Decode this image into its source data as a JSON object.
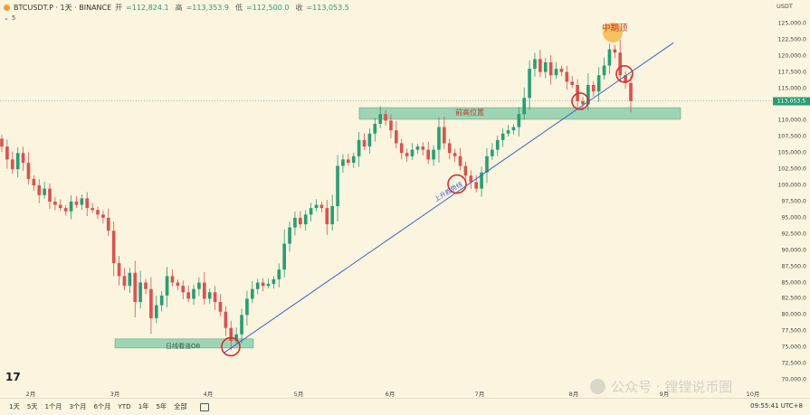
{
  "header": {
    "symbol": "BTCUSDT.P · 1天 · BINANCE",
    "ohlc": [
      {
        "label": "开",
        "value": "=112,824.1"
      },
      {
        "label": "高",
        "value": "=113,353.9"
      },
      {
        "label": "低",
        "value": "=112,500.0"
      },
      {
        "label": "收",
        "value": "=113,053.5"
      }
    ],
    "indicator_count": "5"
  },
  "price_axis": {
    "currency": "USDT",
    "current_price": "113,053.5",
    "ticks": [
      "125,000.0",
      "122,500.0",
      "120,000.0",
      "117,500.0",
      "115,000.0",
      "110,000.0",
      "107,500.0",
      "105,000.0",
      "102,500.0",
      "100,000.0",
      "97,500.0",
      "95,000.0",
      "92,500.0",
      "90,000.0",
      "87,500.0",
      "85,000.0",
      "82,500.0",
      "80,000.0",
      "77,500.0",
      "75,000.0",
      "72,500.0",
      "70,000.0"
    ]
  },
  "time_axis": {
    "ticks": [
      "2月",
      "3月",
      "4月",
      "5月",
      "6月",
      "7月",
      "8月",
      "9月",
      "10月"
    ]
  },
  "annotations": {
    "mid_top": "中期顶",
    "prev_high": "前高位置",
    "trendline": "上升趋势线",
    "daily_ob": "日线看涨OB"
  },
  "footer": {
    "ranges": [
      "1天",
      "5天",
      "1个月",
      "3个月",
      "6个月",
      "YTD",
      "1年",
      "5年",
      "全部"
    ],
    "clock": "09:55:41 UTC+8"
  },
  "watermark": "公众号 · 镗镗说币圈",
  "colors": {
    "up": "#2a9d75",
    "down": "#d9534f",
    "trend": "#3a63c9",
    "zone": "#7fc9a6",
    "circle": "#d03030"
  },
  "chart_data": {
    "type": "candlestick",
    "symbol": "BTCUSDT.P",
    "interval": "1D",
    "y_range": [
      70000,
      127500
    ],
    "x_categories": [
      "2月",
      "3月",
      "4月",
      "5月",
      "6月",
      "7月",
      "8月",
      "9月",
      "10月"
    ],
    "candles_close": [
      106000,
      104000,
      102500,
      105000,
      103500,
      101000,
      100000,
      98500,
      99500,
      97500,
      97000,
      96500,
      96000,
      97500,
      97000,
      98000,
      96500,
      96200,
      95500,
      95000,
      93000,
      88000,
      86000,
      84500,
      86500,
      82000,
      85000,
      84000,
      79500,
      81500,
      83000,
      86000,
      85000,
      84500,
      83500,
      82500,
      84000,
      85000,
      82500,
      83500,
      82000,
      80500,
      78000,
      76000,
      77000,
      80000,
      82500,
      84000,
      85000,
      84500,
      84800,
      85500,
      87000,
      91000,
      93500,
      95000,
      94000,
      95500,
      96500,
      97000,
      96500,
      94000,
      96800,
      103000,
      104000,
      103500,
      104500,
      107000,
      106000,
      108000,
      109500,
      111000,
      110000,
      108500,
      106500,
      105000,
      104500,
      105500,
      106000,
      105500,
      104000,
      105500,
      109000,
      106500,
      105000,
      104500,
      103000,
      101500,
      100500,
      99500,
      102000,
      104500,
      105500,
      107000,
      108000,
      108500,
      109000,
      111000,
      113500,
      118000,
      119500,
      117500,
      119000,
      117000,
      118000,
      117500,
      116000,
      115500,
      113000,
      112500,
      115500,
      114500,
      117000,
      118500,
      121000,
      120500,
      117000,
      115800,
      113000
    ]
  }
}
